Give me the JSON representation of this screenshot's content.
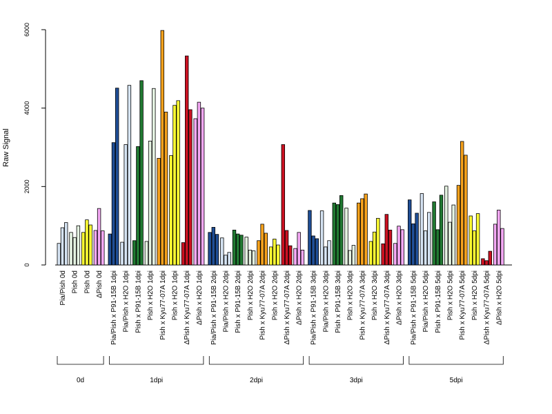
{
  "chart_data": {
    "type": "bar",
    "ylabel": "Raw Signal",
    "ylim": [
      0,
      6000
    ],
    "yticks": [
      0,
      2000,
      4000,
      6000
    ],
    "grid": false,
    "colors": {
      "white": "#ffffff",
      "lightblue": "#d6e4f3",
      "darkblue": "#1f4e96",
      "green": "#217a32",
      "palegreen": "#e4f2e1",
      "orange": "#f5a11c",
      "yellow": "#ffff33",
      "red": "#cc1122",
      "pink": "#f4a8f4"
    },
    "groups": [
      {
        "label": "0d",
        "categories": [
          {
            "label": "Pia/Pish 0d",
            "color": "lightblue",
            "values": [
              550,
              950,
              1080
            ]
          },
          {
            "label": "Pish 0d",
            "color": "palegreen",
            "values": [
              830,
              700,
              1000
            ]
          },
          {
            "label": "Pish 0d",
            "color": "yellow",
            "values": [
              830,
              1150,
              1020
            ]
          },
          {
            "label": "ΔPish 0d",
            "color": "pink",
            "values": [
              880,
              1440,
              870
            ]
          }
        ]
      },
      {
        "label": "1dpi",
        "categories": [
          {
            "label": "Pia/Pish x P91-15B 1dpi",
            "color": "darkblue",
            "values": [
              790,
              3120,
              4510
            ]
          },
          {
            "label": "Pia/Pish x H2O 1dpi",
            "color": "lightblue",
            "values": [
              580,
              3070,
              4580
            ]
          },
          {
            "label": "Pish x P91-15B 1dpi",
            "color": "green",
            "values": [
              620,
              3020,
              4700
            ]
          },
          {
            "label": "Pish x H2O 1dpi",
            "color": "palegreen",
            "values": [
              600,
              3160,
              4500
            ]
          },
          {
            "label": "Pish x Kyu77-07A 1dpi",
            "color": "orange",
            "values": [
              2720,
              5980,
              3900
            ]
          },
          {
            "label": "Pish x H2O 1dpi",
            "color": "yellow",
            "values": [
              2790,
              4070,
              4190
            ]
          },
          {
            "label": "ΔPish x Kyu77-07A 1dpi",
            "color": "red",
            "values": [
              570,
              5330,
              3960
            ]
          },
          {
            "label": "ΔPish x H2O 1dpi",
            "color": "pink",
            "values": [
              3730,
              4150,
              4000
            ]
          }
        ]
      },
      {
        "label": "2dpi",
        "categories": [
          {
            "label": "Pia/Pish x P91-15B 2dpi",
            "color": "darkblue",
            "values": [
              830,
              960,
              780
            ]
          },
          {
            "label": "Pia/Pish x H2O 2dpi",
            "color": "lightblue",
            "values": [
              690,
              250,
              320
            ]
          },
          {
            "label": "Pish x P91-15B 2dpi",
            "color": "green",
            "values": [
              890,
              790,
              760
            ]
          },
          {
            "label": "Pish x H2O 2dpi",
            "color": "palegreen",
            "values": [
              710,
              380,
              360
            ]
          },
          {
            "label": "Pish x Kyu77-07A 2dpi",
            "color": "orange",
            "values": [
              620,
              1040,
              810
            ]
          },
          {
            "label": "Pish x H2O 2dpi",
            "color": "yellow",
            "values": [
              460,
              660,
              510
            ]
          },
          {
            "label": "ΔPish x Kyu77-07A 2dpi",
            "color": "red",
            "values": [
              3070,
              880,
              490
            ]
          },
          {
            "label": "ΔPish x H2O 2dpi",
            "color": "pink",
            "values": [
              420,
              830,
              380
            ]
          }
        ]
      },
      {
        "label": "3dpi",
        "categories": [
          {
            "label": "Pia/Pish x P91-15B 3dpi",
            "color": "darkblue",
            "values": [
              1390,
              740,
              670
            ]
          },
          {
            "label": "Pia/Pish x H2O 3dpi",
            "color": "lightblue",
            "values": [
              1380,
              460,
              620
            ]
          },
          {
            "label": "Pish x P91-15B 3dpi",
            "color": "green",
            "values": [
              1580,
              1540,
              1770
            ]
          },
          {
            "label": "Pish x H2O 3dpi",
            "color": "palegreen",
            "values": [
              1450,
              370,
              500
            ]
          },
          {
            "label": "Pish x Kyu77-07A 3dpi",
            "color": "orange",
            "values": [
              1580,
              1690,
              1810
            ]
          },
          {
            "label": "Pish x H2O 3dpi",
            "color": "yellow",
            "values": [
              600,
              840,
              1190
            ]
          },
          {
            "label": "ΔPish x Kyu77-07A 3dpi",
            "color": "red",
            "values": [
              540,
              1290,
              890
            ]
          },
          {
            "label": "ΔPish x H2O 3dpi",
            "color": "pink",
            "values": [
              550,
              990,
              900
            ]
          }
        ]
      },
      {
        "label": "5dpi",
        "categories": [
          {
            "label": "Pia/Pish x P91-15B 5dpi",
            "color": "darkblue",
            "values": [
              1660,
              1050,
              1320
            ]
          },
          {
            "label": "Pia/Pish x H2O 5dpi",
            "color": "lightblue",
            "values": [
              1820,
              870,
              1340
            ]
          },
          {
            "label": "Pish x P91-15B 5dpi",
            "color": "green",
            "values": [
              1610,
              900,
              1780
            ]
          },
          {
            "label": "Pish x H2O 5dpi",
            "color": "palegreen",
            "values": [
              2010,
              1090,
              1530
            ]
          },
          {
            "label": "Pish x Kyu77-07A 5dpi",
            "color": "orange",
            "values": [
              2030,
              3150,
              2800
            ]
          },
          {
            "label": "Pish x H2O 5dpi",
            "color": "yellow",
            "values": [
              1250,
              870,
              1310
            ]
          },
          {
            "label": "ΔPish x Kyu77-07A 5dpi",
            "color": "red",
            "values": [
              160,
              110,
              350
            ]
          },
          {
            "label": "ΔPish x H2O 5dpi",
            "color": "pink",
            "values": [
              1040,
              1400,
              930
            ]
          }
        ]
      }
    ]
  }
}
